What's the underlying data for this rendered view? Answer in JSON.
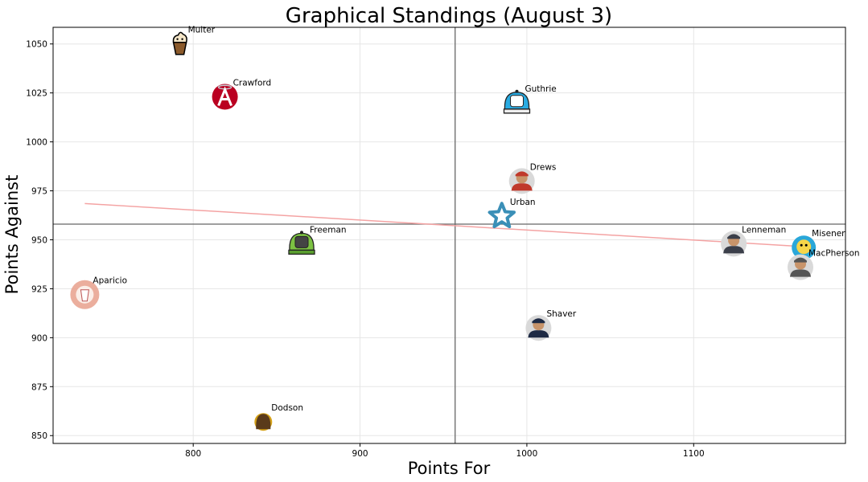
{
  "chart_data": {
    "type": "scatter",
    "title": "Graphical Standings (August 3)",
    "xlabel": "Points For",
    "ylabel": "Points Against",
    "xlim": [
      716,
      1191
    ],
    "ylim": [
      846,
      1058.5
    ],
    "xticks": [
      800,
      900,
      1000,
      1100
    ],
    "yticks": [
      850,
      875,
      900,
      925,
      950,
      975,
      1000,
      1025,
      1050
    ],
    "grid": true,
    "reference_lines": {
      "x": 957,
      "y": 958
    },
    "trend_line": {
      "x": [
        735,
        1166
      ],
      "y": [
        968.5,
        946.5
      ],
      "color": "#f4a3a3"
    },
    "points": [
      {
        "name": "Multer",
        "x": 792,
        "y": 1050,
        "icon": "ice-cream-icon",
        "color": "#8b5a2b"
      },
      {
        "name": "Crawford",
        "x": 819,
        "y": 1023,
        "icon": "angels-logo-icon",
        "color": "#ba0021"
      },
      {
        "name": "Guthrie",
        "x": 994,
        "y": 1020,
        "icon": "cap-b-icon",
        "color": "#29abe2"
      },
      {
        "name": "Drews",
        "x": 997,
        "y": 980,
        "icon": "player-photo-icon",
        "color": "#c0392b"
      },
      {
        "name": "Urban",
        "x": 985,
        "y": 962,
        "icon": "star-logo-icon",
        "color": "#3a8fb7"
      },
      {
        "name": "Freeman",
        "x": 865,
        "y": 948,
        "icon": "cap-e-icon",
        "color": "#7cc242"
      },
      {
        "name": "Lenneman",
        "x": 1124,
        "y": 948,
        "icon": "player-photo-icon",
        "color": "#3b3f4a"
      },
      {
        "name": "Misener",
        "x": 1166,
        "y": 946,
        "icon": "mascot-icon",
        "color": "#2aa7d9"
      },
      {
        "name": "MacPherson",
        "x": 1164,
        "y": 936,
        "icon": "player-photo-icon",
        "color": "#555555"
      },
      {
        "name": "Aparicio",
        "x": 735,
        "y": 922,
        "icon": "drink-cup-icon",
        "color": "#e8a08c"
      },
      {
        "name": "Shaver",
        "x": 1007,
        "y": 905,
        "icon": "player-photo-icon",
        "color": "#1e2a44"
      },
      {
        "name": "Dodson",
        "x": 842,
        "y": 857,
        "icon": "wookiee-icon",
        "color": "#d4a017"
      }
    ]
  }
}
